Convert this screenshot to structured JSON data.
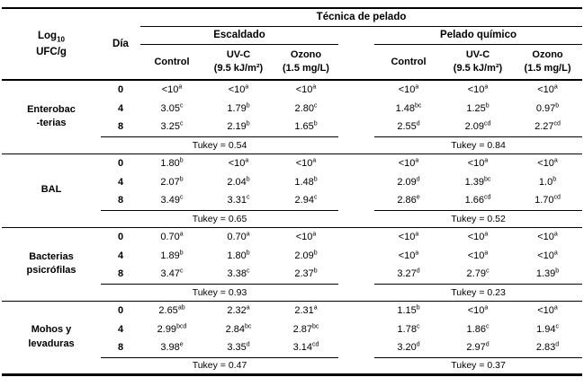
{
  "table": {
    "corner": {
      "pre": "Log",
      "sub": "10",
      "line2": "UFC/g"
    },
    "day_header": "Día",
    "technique_header": "Técnica de pelado",
    "groups_header": [
      {
        "label": "Escaldado",
        "cols": [
          {
            "l1": "Control",
            "l2": ""
          },
          {
            "l1": "UV-C",
            "l2": "(9.5 kJ/m²)"
          },
          {
            "l1": "Ozono",
            "l2": "(1.5 mg/L)"
          }
        ]
      },
      {
        "label": "Pelado químico",
        "cols": [
          {
            "l1": "Control",
            "l2": ""
          },
          {
            "l1": "UV-C",
            "l2": "(9.5 kJ/m²)"
          },
          {
            "l1": "Ozono",
            "l2": "(1.5 mg/L)"
          }
        ]
      }
    ],
    "body": [
      {
        "organism": "Enterobac\n-terias",
        "rows": [
          {
            "day": "0",
            "cells": [
              {
                "v": "<10",
                "s": "a"
              },
              {
                "v": "<10",
                "s": "a"
              },
              {
                "v": "<10",
                "s": "a"
              },
              {
                "v": "<10",
                "s": "a"
              },
              {
                "v": "<10",
                "s": "a"
              },
              {
                "v": "<10",
                "s": "a"
              }
            ]
          },
          {
            "day": "4",
            "cells": [
              {
                "v": "3.05",
                "s": "c"
              },
              {
                "v": "1.79",
                "s": "b"
              },
              {
                "v": "2.80",
                "s": "c"
              },
              {
                "v": "1.48",
                "s": "bc"
              },
              {
                "v": "1.25",
                "s": "b"
              },
              {
                "v": "0.97",
                "s": "b"
              }
            ]
          },
          {
            "day": "8",
            "cells": [
              {
                "v": "3.25",
                "s": "c"
              },
              {
                "v": "2.19",
                "s": "b"
              },
              {
                "v": "1.65",
                "s": "b"
              },
              {
                "v": "2.55",
                "s": "d"
              },
              {
                "v": "2.09",
                "s": "cd"
              },
              {
                "v": "2.27",
                "s": "cd"
              }
            ]
          }
        ],
        "tukey": [
          "Tukey = 0.54",
          "Tukey = 0.84"
        ]
      },
      {
        "organism": "BAL",
        "rows": [
          {
            "day": "0",
            "cells": [
              {
                "v": "1.80",
                "s": "b"
              },
              {
                "v": "<10",
                "s": "a"
              },
              {
                "v": "<10",
                "s": "a"
              },
              {
                "v": "<10",
                "s": "a"
              },
              {
                "v": "<10",
                "s": "a"
              },
              {
                "v": "<10",
                "s": "a"
              }
            ]
          },
          {
            "day": "4",
            "cells": [
              {
                "v": "2.07",
                "s": "b"
              },
              {
                "v": "2.04",
                "s": "b"
              },
              {
                "v": "1.48",
                "s": "b"
              },
              {
                "v": "2.09",
                "s": "d"
              },
              {
                "v": "1.39",
                "s": "bc"
              },
              {
                "v": "1.0",
                "s": "b"
              }
            ]
          },
          {
            "day": "8",
            "cells": [
              {
                "v": "3.49",
                "s": "c"
              },
              {
                "v": "3.31",
                "s": "c"
              },
              {
                "v": "2.94",
                "s": "c"
              },
              {
                "v": "2.86",
                "s": "e"
              },
              {
                "v": "1.66",
                "s": "cd"
              },
              {
                "v": "1.70",
                "s": "cd"
              }
            ]
          }
        ],
        "tukey": [
          "Tukey = 0.65",
          "Tukey = 0.52"
        ]
      },
      {
        "organism": "Bacterias\npsicrófilas",
        "rows": [
          {
            "day": "0",
            "cells": [
              {
                "v": "0.70",
                "s": "a"
              },
              {
                "v": "0.70",
                "s": "a"
              },
              {
                "v": "<10",
                "s": "a"
              },
              {
                "v": "<10",
                "s": "a"
              },
              {
                "v": "<10",
                "s": "a"
              },
              {
                "v": "<10",
                "s": "a"
              }
            ]
          },
          {
            "day": "4",
            "cells": [
              {
                "v": "1.89",
                "s": "b"
              },
              {
                "v": "1.80",
                "s": "b"
              },
              {
                "v": "2.09",
                "s": "b"
              },
              {
                "v": "<10",
                "s": "a"
              },
              {
                "v": "<10",
                "s": "a"
              },
              {
                "v": "<10",
                "s": "a"
              }
            ]
          },
          {
            "day": "8",
            "cells": [
              {
                "v": "3.47",
                "s": "c"
              },
              {
                "v": "3.38",
                "s": "c"
              },
              {
                "v": "2.37",
                "s": "b"
              },
              {
                "v": "3.27",
                "s": "d"
              },
              {
                "v": "2.79",
                "s": "c"
              },
              {
                "v": "1.39",
                "s": "b"
              }
            ]
          }
        ],
        "tukey": [
          "Tukey = 0.93",
          "Tukey = 0.23"
        ]
      },
      {
        "organism": "Mohos y\nlevaduras",
        "rows": [
          {
            "day": "0",
            "cells": [
              {
                "v": "2.65",
                "s": "ab"
              },
              {
                "v": "2.32",
                "s": "a"
              },
              {
                "v": "2.31",
                "s": "a"
              },
              {
                "v": "1.15",
                "s": "b"
              },
              {
                "v": "<10",
                "s": "a"
              },
              {
                "v": "<10",
                "s": "a"
              }
            ]
          },
          {
            "day": "4",
            "cells": [
              {
                "v": "2.99",
                "s": "bcd"
              },
              {
                "v": "2.84",
                "s": "bc"
              },
              {
                "v": "2.87",
                "s": "bc"
              },
              {
                "v": "1.78",
                "s": "c"
              },
              {
                "v": "1.86",
                "s": "c"
              },
              {
                "v": "1.94",
                "s": "c"
              }
            ]
          },
          {
            "day": "8",
            "cells": [
              {
                "v": "3.98",
                "s": "e"
              },
              {
                "v": "3.35",
                "s": "d"
              },
              {
                "v": "3.14",
                "s": "cd"
              },
              {
                "v": "3.20",
                "s": "d"
              },
              {
                "v": "2.97",
                "s": "d"
              },
              {
                "v": "2.83",
                "s": "d"
              }
            ]
          }
        ],
        "tukey": [
          "Tukey = 0.47",
          "Tukey = 0.37"
        ]
      }
    ],
    "colors": {
      "text": "#000000",
      "background": "#ffffff",
      "line": "#000000"
    }
  }
}
